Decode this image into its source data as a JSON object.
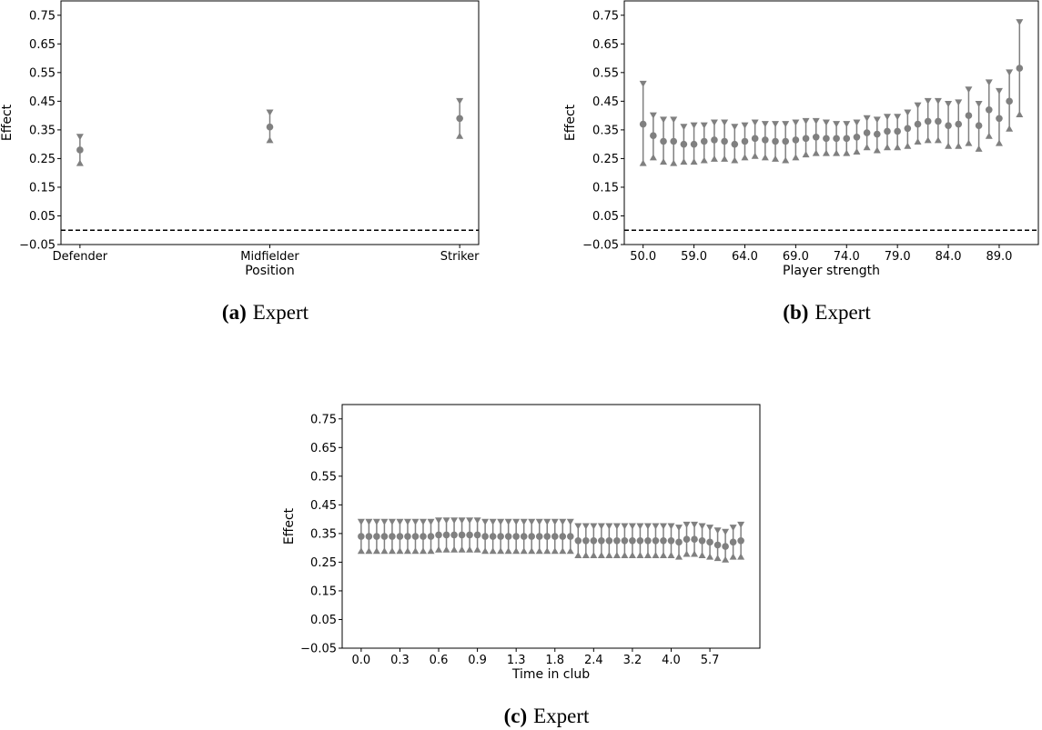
{
  "chart_data": [
    {
      "type": "errorbar",
      "x_label": "Position",
      "y_label": "Effect",
      "caption_label": "(a)",
      "caption": "Expert",
      "categories": [
        "Defender",
        "Midfielder",
        "Striker"
      ],
      "values": [
        0.28,
        0.36,
        0.39
      ],
      "lower": [
        0.235,
        0.315,
        0.33
      ],
      "upper": [
        0.325,
        0.41,
        0.45
      ],
      "color": "#808080",
      "reference_line": 0,
      "ylim": [
        -0.05,
        0.8
      ],
      "yticks": [
        {
          "value": -0.05,
          "label": "−0.05"
        },
        0.05,
        0.15,
        0.25,
        0.35,
        0.45,
        0.55,
        0.65,
        0.75
      ]
    },
    {
      "type": "errorbar",
      "x_label": "Player strength",
      "y_label": "Effect",
      "caption_label": "(b)",
      "caption": "Expert",
      "categories": [
        "50.0",
        null,
        null,
        null,
        null,
        "59.0",
        null,
        null,
        null,
        null,
        "64.0",
        null,
        null,
        null,
        null,
        "69.0",
        null,
        null,
        null,
        null,
        "74.0",
        null,
        null,
        null,
        null,
        "79.0",
        null,
        null,
        null,
        null,
        "84.0",
        null,
        null,
        null,
        null,
        "89.0",
        null,
        null
      ],
      "values": [
        0.37,
        0.33,
        0.31,
        0.31,
        0.3,
        0.3,
        0.31,
        0.315,
        0.31,
        0.3,
        0.31,
        0.32,
        0.315,
        0.31,
        0.31,
        0.315,
        0.32,
        0.325,
        0.32,
        0.32,
        0.32,
        0.325,
        0.34,
        0.335,
        0.345,
        0.345,
        0.355,
        0.37,
        0.38,
        0.38,
        0.365,
        0.37,
        0.4,
        0.365,
        0.42,
        0.39,
        0.45,
        0.565
      ],
      "lower": [
        0.235,
        0.255,
        0.24,
        0.235,
        0.24,
        0.24,
        0.245,
        0.25,
        0.25,
        0.245,
        0.255,
        0.26,
        0.255,
        0.25,
        0.245,
        0.255,
        0.265,
        0.27,
        0.27,
        0.27,
        0.27,
        0.275,
        0.29,
        0.28,
        0.29,
        0.29,
        0.295,
        0.31,
        0.315,
        0.315,
        0.295,
        0.295,
        0.305,
        0.285,
        0.33,
        0.305,
        0.355,
        0.405
      ],
      "upper": [
        0.51,
        0.4,
        0.385,
        0.385,
        0.36,
        0.365,
        0.365,
        0.375,
        0.375,
        0.36,
        0.365,
        0.375,
        0.37,
        0.37,
        0.37,
        0.375,
        0.38,
        0.38,
        0.375,
        0.37,
        0.37,
        0.375,
        0.39,
        0.385,
        0.395,
        0.395,
        0.41,
        0.435,
        0.45,
        0.45,
        0.44,
        0.445,
        0.49,
        0.44,
        0.515,
        0.485,
        0.55,
        0.725
      ],
      "color": "#808080",
      "reference_line": 0,
      "ylim": [
        -0.05,
        0.8
      ],
      "yticks": [
        {
          "value": -0.05,
          "label": "−0.05"
        },
        0.05,
        0.15,
        0.25,
        0.35,
        0.45,
        0.55,
        0.65,
        0.75
      ]
    },
    {
      "type": "errorbar",
      "x_label": "Time in club",
      "y_label": "Effect",
      "caption_label": "(c)",
      "caption": "Expert",
      "categories": [
        "0.0",
        null,
        null,
        null,
        null,
        "0.3",
        null,
        null,
        null,
        null,
        "0.6",
        null,
        null,
        null,
        null,
        "0.9",
        null,
        null,
        null,
        null,
        "1.3",
        null,
        null,
        null,
        null,
        "1.8",
        null,
        null,
        null,
        null,
        "2.4",
        null,
        null,
        null,
        null,
        "3.2",
        null,
        null,
        null,
        null,
        "4.0",
        null,
        null,
        null,
        null,
        "5.7",
        null,
        null,
        null,
        null
      ],
      "values": [
        0.34,
        0.34,
        0.34,
        0.34,
        0.34,
        0.34,
        0.34,
        0.34,
        0.34,
        0.34,
        0.345,
        0.345,
        0.345,
        0.345,
        0.345,
        0.345,
        0.34,
        0.34,
        0.34,
        0.34,
        0.34,
        0.34,
        0.34,
        0.34,
        0.34,
        0.34,
        0.34,
        0.34,
        0.325,
        0.325,
        0.325,
        0.325,
        0.325,
        0.325,
        0.325,
        0.325,
        0.325,
        0.325,
        0.325,
        0.325,
        0.325,
        0.32,
        0.33,
        0.33,
        0.325,
        0.32,
        0.31,
        0.305,
        0.32,
        0.325
      ],
      "lower": [
        0.29,
        0.29,
        0.29,
        0.29,
        0.29,
        0.29,
        0.29,
        0.29,
        0.29,
        0.29,
        0.295,
        0.295,
        0.295,
        0.295,
        0.295,
        0.295,
        0.29,
        0.29,
        0.29,
        0.29,
        0.29,
        0.29,
        0.29,
        0.29,
        0.29,
        0.29,
        0.29,
        0.29,
        0.275,
        0.275,
        0.275,
        0.275,
        0.275,
        0.275,
        0.275,
        0.275,
        0.275,
        0.275,
        0.275,
        0.275,
        0.275,
        0.27,
        0.28,
        0.28,
        0.275,
        0.27,
        0.265,
        0.26,
        0.27,
        0.27
      ],
      "upper": [
        0.39,
        0.39,
        0.39,
        0.39,
        0.39,
        0.39,
        0.39,
        0.39,
        0.39,
        0.39,
        0.395,
        0.395,
        0.395,
        0.395,
        0.395,
        0.395,
        0.39,
        0.39,
        0.39,
        0.39,
        0.39,
        0.39,
        0.39,
        0.39,
        0.39,
        0.39,
        0.39,
        0.39,
        0.375,
        0.375,
        0.375,
        0.375,
        0.375,
        0.375,
        0.375,
        0.375,
        0.375,
        0.375,
        0.375,
        0.375,
        0.375,
        0.37,
        0.38,
        0.38,
        0.375,
        0.37,
        0.36,
        0.355,
        0.37,
        0.38
      ],
      "color": "#808080",
      "ylim": [
        -0.05,
        0.8
      ],
      "yticks": [
        {
          "value": -0.05,
          "label": "−0.05"
        },
        0.05,
        0.15,
        0.25,
        0.35,
        0.45,
        0.55,
        0.65,
        0.75
      ]
    }
  ]
}
